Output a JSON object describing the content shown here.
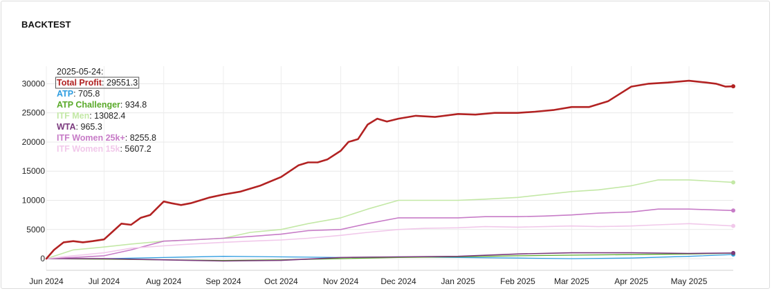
{
  "panel_title": "BACKTEST",
  "chart_data": {
    "type": "line",
    "title": "BACKTEST",
    "xlabel": "",
    "ylabel": "",
    "ylim": [
      -2000,
      33000
    ],
    "yticks": [
      0,
      5000,
      10000,
      15000,
      20000,
      25000,
      30000
    ],
    "ytick_labels": [
      "0",
      "5000",
      "10000",
      "15000",
      "20000",
      "25000",
      "30000"
    ],
    "x_range": [
      "2024-06-01",
      "2025-05-24"
    ],
    "xticks": [
      "2024-06-01",
      "2024-07-01",
      "2024-08-01",
      "2024-09-01",
      "2024-10-01",
      "2024-11-01",
      "2024-12-01",
      "2025-01-01",
      "2025-02-01",
      "2025-03-01",
      "2025-04-01",
      "2025-05-01"
    ],
    "xtick_labels": [
      "Jun 2024",
      "Jul 2024",
      "Aug 2024",
      "Sep 2024",
      "Oct 2024",
      "Nov 2024",
      "Dec 2024",
      "Jan 2025",
      "Feb 2025",
      "Mar 2025",
      "Apr 2025",
      "May 2025"
    ],
    "grid": true,
    "legend_position": "top-left",
    "legend_date": "2025-05-24:",
    "series": [
      {
        "name": "Total Profit",
        "color": "#b22222",
        "width": 2.6,
        "last_value": "29551.3",
        "x": [
          "2024-06-01",
          "2024-06-05",
          "2024-06-10",
          "2024-06-15",
          "2024-06-20",
          "2024-06-25",
          "2024-07-01",
          "2024-07-05",
          "2024-07-10",
          "2024-07-15",
          "2024-07-20",
          "2024-07-25",
          "2024-08-01",
          "2024-08-05",
          "2024-08-10",
          "2024-08-15",
          "2024-08-20",
          "2024-08-25",
          "2024-09-01",
          "2024-09-10",
          "2024-09-20",
          "2024-10-01",
          "2024-10-10",
          "2024-10-15",
          "2024-10-20",
          "2024-10-25",
          "2024-11-01",
          "2024-11-05",
          "2024-11-10",
          "2024-11-15",
          "2024-11-20",
          "2024-11-25",
          "2024-12-01",
          "2024-12-10",
          "2024-12-20",
          "2025-01-01",
          "2025-01-10",
          "2025-01-20",
          "2025-02-01",
          "2025-02-10",
          "2025-02-20",
          "2025-03-01",
          "2025-03-10",
          "2025-03-20",
          "2025-04-01",
          "2025-04-10",
          "2025-04-20",
          "2025-05-01",
          "2025-05-10",
          "2025-05-15",
          "2025-05-20",
          "2025-05-24"
        ],
        "y": [
          0,
          1500,
          2800,
          3000,
          2800,
          3000,
          3300,
          4500,
          6000,
          5800,
          7000,
          7500,
          9800,
          9500,
          9200,
          9500,
          10000,
          10500,
          11000,
          11500,
          12500,
          14000,
          16000,
          16500,
          16500,
          17000,
          18500,
          20000,
          20500,
          23000,
          24000,
          23500,
          24000,
          24500,
          24300,
          24800,
          24700,
          25000,
          25000,
          25200,
          25500,
          26000,
          26000,
          27000,
          29500,
          30000,
          30200,
          30500,
          30200,
          30000,
          29500,
          29551.3
        ]
      },
      {
        "name": "ATP",
        "color": "#2e9de0",
        "width": 1.3,
        "last_value": "705.8",
        "x": [
          "2024-06-01",
          "2024-07-01",
          "2024-08-01",
          "2024-09-01",
          "2024-10-01",
          "2024-11-01",
          "2024-12-01",
          "2025-01-01",
          "2025-02-01",
          "2025-03-01",
          "2025-04-01",
          "2025-05-01",
          "2025-05-24"
        ],
        "y": [
          0,
          0,
          200,
          400,
          300,
          200,
          300,
          200,
          100,
          0,
          100,
          400,
          705.8
        ]
      },
      {
        "name": "ATP Challenger",
        "color": "#5aaa2a",
        "width": 1.3,
        "last_value": "934.8",
        "x": [
          "2024-06-01",
          "2024-07-01",
          "2024-08-01",
          "2024-09-01",
          "2024-10-01",
          "2024-11-01",
          "2024-12-01",
          "2025-01-01",
          "2025-02-01",
          "2025-03-01",
          "2025-04-01",
          "2025-05-01",
          "2025-05-24"
        ],
        "y": [
          0,
          -100,
          -200,
          -300,
          -200,
          0,
          200,
          300,
          500,
          600,
          700,
          800,
          934.8
        ]
      },
      {
        "name": "ITF Men",
        "color": "#c3e8a6",
        "width": 1.6,
        "last_value": "13082.4",
        "x": [
          "2024-06-01",
          "2024-06-15",
          "2024-07-01",
          "2024-07-15",
          "2024-08-01",
          "2024-08-15",
          "2024-09-01",
          "2024-09-15",
          "2024-10-01",
          "2024-10-15",
          "2024-11-01",
          "2024-11-15",
          "2024-12-01",
          "2024-12-15",
          "2025-01-01",
          "2025-01-15",
          "2025-02-01",
          "2025-02-15",
          "2025-03-01",
          "2025-03-15",
          "2025-04-01",
          "2025-04-15",
          "2025-05-01",
          "2025-05-24"
        ],
        "y": [
          0,
          1500,
          2000,
          2500,
          3000,
          3200,
          3500,
          4500,
          5000,
          6000,
          7000,
          8500,
          10000,
          10000,
          10000,
          10200,
          10500,
          11000,
          11500,
          11800,
          12500,
          13500,
          13500,
          13082.4
        ]
      },
      {
        "name": "WTA",
        "color": "#7b3a7e",
        "width": 1.6,
        "last_value": "965.3",
        "x": [
          "2024-06-01",
          "2024-07-01",
          "2024-08-01",
          "2024-09-01",
          "2024-10-01",
          "2024-11-01",
          "2024-12-01",
          "2025-01-01",
          "2025-02-01",
          "2025-03-01",
          "2025-04-01",
          "2025-05-01",
          "2025-05-24"
        ],
        "y": [
          0,
          0,
          -200,
          -400,
          -300,
          200,
          300,
          400,
          800,
          1000,
          1000,
          900,
          965.3
        ]
      },
      {
        "name": "ITF Women 25k+",
        "color": "#c77bc7",
        "width": 1.6,
        "last_value": "8255.8",
        "x": [
          "2024-06-01",
          "2024-06-15",
          "2024-07-01",
          "2024-07-15",
          "2024-08-01",
          "2024-08-15",
          "2024-09-01",
          "2024-09-15",
          "2024-10-01",
          "2024-10-15",
          "2024-11-01",
          "2024-11-15",
          "2024-12-01",
          "2024-12-15",
          "2025-01-01",
          "2025-01-15",
          "2025-02-01",
          "2025-02-15",
          "2025-03-01",
          "2025-03-15",
          "2025-04-01",
          "2025-04-15",
          "2025-05-01",
          "2025-05-24"
        ],
        "y": [
          0,
          200,
          500,
          1500,
          3000,
          3200,
          3500,
          3800,
          4200,
          4800,
          5000,
          6000,
          7000,
          7000,
          7000,
          7200,
          7200,
          7300,
          7500,
          7800,
          8000,
          8500,
          8500,
          8255.8
        ]
      },
      {
        "name": "ITF Women 15k",
        "color": "#f1c8ea",
        "width": 1.6,
        "last_value": "5607.2",
        "x": [
          "2024-06-01",
          "2024-06-15",
          "2024-07-01",
          "2024-07-15",
          "2024-08-01",
          "2024-08-15",
          "2024-09-01",
          "2024-09-15",
          "2024-10-01",
          "2024-10-15",
          "2024-11-01",
          "2024-11-15",
          "2024-12-01",
          "2024-12-15",
          "2025-01-01",
          "2025-01-15",
          "2025-02-01",
          "2025-02-15",
          "2025-03-01",
          "2025-03-15",
          "2025-04-01",
          "2025-04-15",
          "2025-05-01",
          "2025-05-24"
        ],
        "y": [
          0,
          500,
          1000,
          1800,
          2200,
          2500,
          2800,
          3000,
          3200,
          3500,
          4000,
          4500,
          5000,
          5200,
          5300,
          5500,
          5400,
          5500,
          5600,
          5500,
          5600,
          5800,
          6000,
          5607.2
        ]
      }
    ]
  }
}
